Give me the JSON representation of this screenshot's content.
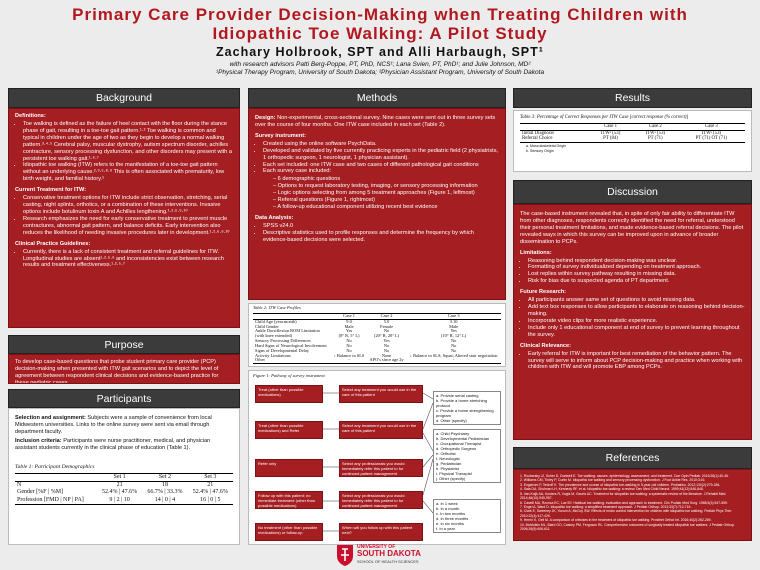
{
  "title": "Primary Care Provider Decision-Making when Treating Children with Idiopathic Toe Walking: A Pilot Study",
  "authors": "Zachary Holbrook, SPT and Alli Harbaugh, SPT¹",
  "advisors": "with research advisors Patti Berg-Poppe, PT, PhD, NCS¹; Lana Svien, PT, PhD¹; and Julie Johnson, MD²",
  "affiliations": "¹Physical Therapy Program, University of South Dakota; ²Physician Assistant Program, University of South Dakota",
  "background": {
    "heading": "Background",
    "blocks": [
      {
        "heading": "Definitions:",
        "items": [
          "Toe walking is defined as the failure of heel contact with the floor during the stance phase of gait, resulting in a toe-toe gait pattern.¹·² Toe walking is common and typical in children under the age of two as they begin to develop a normal walking pattern.³·⁴·⁵ Cerebral palsy, muscular dystrophy, autism spectrum disorder, achilles contracture, sensory processing dysfunction, and other disorders may present with a persistent toe walking gait.¹·⁶·⁷",
          "Idiopathic toe walking (ITW) refers to the manifestation of a toe-toe gait pattern without an underlying cause.²·³·⁵·⁸·⁹ This is often associated with prematurity, low birth weight, and familial history.⁵"
        ]
      },
      {
        "heading": "Current Treatment for ITW:",
        "items": [
          "Conservative treatment options for ITW include strict observation, stretching, serial casting, night splints, orthotics, or a combination of these interventions. Invasive options include botulinum toxin A and Achilles lengthening.¹·²·⁶·⁹·¹⁰",
          "Research emphasizes the need for early conservative treatment to prevent muscle contractures, abnormal gait pattern, and balance deficits. Early intervention also reduces the likelihood of needing invasive procedures later in development.¹·²·⁶·⁹·¹⁰"
        ]
      },
      {
        "heading": "Clinical Practice Guidelines:",
        "items": [
          "Currently, there is a lack of consistent treatment and referral guidelines for ITW. Longitudinal studies are absent¹·²·⁵·⁶ and inconsistencies exist between research results and treatment effectiveness.¹·²·⁵·⁷"
        ]
      }
    ]
  },
  "purpose": {
    "heading": "Purpose",
    "text": "To develop case-based questions that probe student primary care provider (PCP) decision-making when presented with ITW gait scenarios and to depict the level of agreement between respondent clinical decisions and evidence-based practice for these pediatric cases."
  },
  "participants": {
    "heading": "Participants",
    "blocks": [
      {
        "lead": "Selection and assignment:",
        "text": " Subjects were a sample of convenience from local Midwestern universities. Links to the online survey were sent via email through department faculty."
      },
      {
        "lead": "Inclusion criteria:",
        "text": " Participants were nurse practitioner, medical, and physician assistant students currently in the clinical phase of education (Table 1)."
      }
    ],
    "table": {
      "caption": "Table 1: Participant Demographics",
      "header": [
        "",
        "Set 1",
        "Set 2",
        "Set 3"
      ],
      "rows": [
        [
          "N",
          "21",
          "18",
          "21"
        ],
        [
          "Gender [%F | %M]",
          "52.4% | 47.6%",
          "66.7% | 33.3%",
          "52.4% | 47.6%"
        ],
        [
          "Profession [FMD | NP | PA]",
          "9 | 2 | 10",
          "14 | 0 | 4",
          "16 | 0 | 5"
        ]
      ]
    }
  },
  "methods": {
    "heading": "Methods",
    "blocks": [
      {
        "lead": "Design:",
        "text": " Non-experimental, cross-sectional survey. Nine cases were sent out in three survey sets over the course of four months. One ITW case included in each set (Table 2)."
      },
      {
        "heading": "Survey instrument:",
        "items": [
          "Created using the online software PsychData.",
          "Developed and validated by five currently practicing experts in the pediatric field (2 physiatrists, 1 orthopedic surgeon, 1 neurologist, 1 physician assistant).",
          "Each set included: one ITW case and two cases of different pathological gait conditions",
          {
            "text": "Each survey case included:",
            "items": [
              "6 demographic questions",
              "Options to request laboratory testing, imaging, or sensory processing information",
              "Logic options selecting from among 5 treatment approaches (Figure 1, leftmost)",
              "Referral questions (Figure 1, rightmost)",
              "A follow-up educational component utilizing recent best evidence"
            ]
          }
        ]
      },
      {
        "heading": "Data Analysis:",
        "items": [
          "SPSS v24.0",
          "Descriptive statistics used to profile responses and determine the frequency by which evidence-based decisions were selected."
        ]
      }
    ],
    "table": {
      "caption": "Table 2: ITW Case Profiles",
      "header": [
        "",
        "Case 1",
        "Case 2",
        "Case 3"
      ],
      "rows": [
        [
          "Child Age (year.month)",
          "9.0",
          "5.0",
          "3.10"
        ],
        [
          "Child Gender",
          "Male",
          "Female",
          "Male"
        ],
        [
          "Ankle Dorsiflexion ROM Limitation",
          "Yes",
          "No",
          "Yes"
        ],
        [
          "(with knee extended)",
          "(8° R, 5° L)",
          "(20° R, 20° L)",
          "(10° R, 12° L)"
        ],
        [
          "Sensory Processing Differences",
          "No",
          "Yes",
          "No"
        ],
        [
          "Hard Signs of Neurological Involvement",
          "No",
          "No",
          "No"
        ],
        [
          "Signs of Developmental Delay",
          "No",
          "No",
          "No"
        ],
        [
          "Activity Limitations",
          "↓ Balance in SLS",
          "None",
          "↓ Balance in SLS; Squat; Altered stair negotiation"
        ],
        [
          "Other",
          "-",
          "APO's since age 2y",
          "-"
        ]
      ]
    },
    "figure": {
      "caption": "Figure 1: Pathway of survey instrument",
      "approaches": [
        "Treat (other than possible medications)",
        "Treat (other than possible medications) and Refer",
        "Refer only",
        "Follow up with this patient; no immediate treatment (other than possible medications)",
        "No treatment (other than possible medications) or follow-up"
      ],
      "questions": [
        "Select any treatment you would use in the care of this patient",
        "Select any treatment you would use in the care of this patient",
        "Select any professionals you would immediately refer this patient to for continued patient management",
        "Select any professionals you would immediately refer this patient to for continued patient management",
        "When will you follow up with this patient next?"
      ],
      "treatments": [
        "a. Provide serial casting",
        "b. Provide a home stretching protocol",
        "c. Provide a home strengthening program",
        "d. Other (specify)"
      ],
      "professionals": [
        "a. Child Psychiatry",
        "b. Developmental Pediatrician",
        "c. Occupational Therapist",
        "d. Orthopedic Surgeon",
        "e. Orthotist",
        "f. Neurologist",
        "g. Pediatrician",
        "h. Physiatrist",
        "i. Physical Therapist",
        "j. Other (specify)"
      ],
      "followups": [
        "a. In 1 week",
        "b. In a month",
        "c. In two months",
        "d. In three months",
        "e. In six months",
        "f. In a year"
      ]
    }
  },
  "results": {
    "heading": "Results",
    "table": {
      "caption": "Table 3: Percentage of Correct Responses per ITW Case [correct response (% correct)]",
      "header": [
        "",
        "Case 1",
        "Case 2",
        "Case 3"
      ],
      "rows": [
        [
          "Initial Diagnosis",
          "ITWᵃ (53)",
          "ITWᵃ (53)",
          "ITWᵃ (53)"
        ],
        [
          "Referral Choice",
          "PT (84)",
          "PT (71)",
          "PT (71) OT (71)"
        ]
      ]
    },
    "notes": [
      "a.   Musculoskeletal Origin",
      "b.   Sensory Origin"
    ]
  },
  "discussion": {
    "heading": "Discussion",
    "blocks": [
      {
        "text": "The case-based instrument revealed that, in spite of only fair ability to differentiate ITW from other diagnoses, respondents correctly identified the need for referral, understood their personal treatment limitations, and made evidence-based referral decisions. The pilot revealed ways in which this survey can be improved upon in advance of broader dissemination to PCPs."
      },
      {
        "heading": "Limitations:",
        "items": [
          "Reasoning behind respondent decision-making was unclear.",
          "Formatting of survey individualized depending on treatment approach.",
          "Lost replies within survey pathway resulting in missing data.",
          "Risk for bias due to suspected agenda of PT department."
        ]
      },
      {
        "heading": "Future Research:",
        "items": [
          "All participants answer same set of questions to avoid missing data.",
          "Add text box responses to allow participants to elaborate on reasoning behind decision-making.",
          "Incorporate video clips for more realistic experience.",
          "Include only 1 educational component at end of survey to prevent learning throughout the survey."
        ]
      },
      {
        "heading": "Clinical Relevance:",
        "items": [
          "Early referral for ITW is important for best remediation of the behavior pattern. The survey will serve to inform about PCP decision-making and practice when working with children with ITW and will promote EBP among PCPs."
        ]
      }
    ]
  },
  "references": {
    "heading": "References",
    "items": [
      "1. Ruzbarsky JJ, Scher D, Dodwell E. Toe walking: causes, epidemiology, assessment, and treatment. Curr Opin Pediatr. 2016;28(1):40-46.",
      "2. Williams CM, Tinley P, Curtin M. Idiopathic toe walking and sensory processing dysfunction. J Foot Ankle Res. 2010;3:16.",
      "3. Engstrom P, Tedroff K. The prevalence and course of idiopathic toe-walking in 5-year-old children. Pediatrics. 2012;130(2):279-284.",
      "4. Sala DA, Shulman LH, Kennedy RF, et al. Idiopathic toe-walking: a review. Dev Med Child Neurol. 1999;41(12):846-848.",
      "5. Van Kuijk AA, Kosters R, Vugts M, Geurts AC. Treatment for idiopathic toe walking: a systematic review of the literature. J Rehabil Med. 2014;46(10):945-957.",
      "6. Caselli MA, Rzonca EC, Lue BY. Habitual toe-walking: evaluation and approach to treatment. Clin Podiatr Med Surg. 1988;5(3):547-559.",
      "7. Engel A, Ward D. Idiopathic toe walking: a simplified treatment approach. J Pediatr Orthop. 2013;33(7):712-715.",
      "8. Clark E, Sweeney JK, Yocum A, McCoy SW. Effects of motor control intervention for children with idiopathic toe walking. Pediatr Phys Ther. 2010;22(4):417-426.",
      "9. Herrin K, Geil M. A comparison of orthoses in the treatment of idiopathic toe walking. Prosthet Orthot Int. 2016;40(2):262-269.",
      "10. McMulkin ML, Baird GO, Caskey PM, Ferguson RL. Comprehensive outcomes of surgically treated idiopathic toe walkers. J Pediatr Orthop. 2006;26(5):606-611."
    ]
  },
  "logo": {
    "line1": "UNIVERSITY OF",
    "line2": "SOUTH DAKOTA",
    "line3": "SCHOOL OF HEALTH SCIENCES"
  }
}
